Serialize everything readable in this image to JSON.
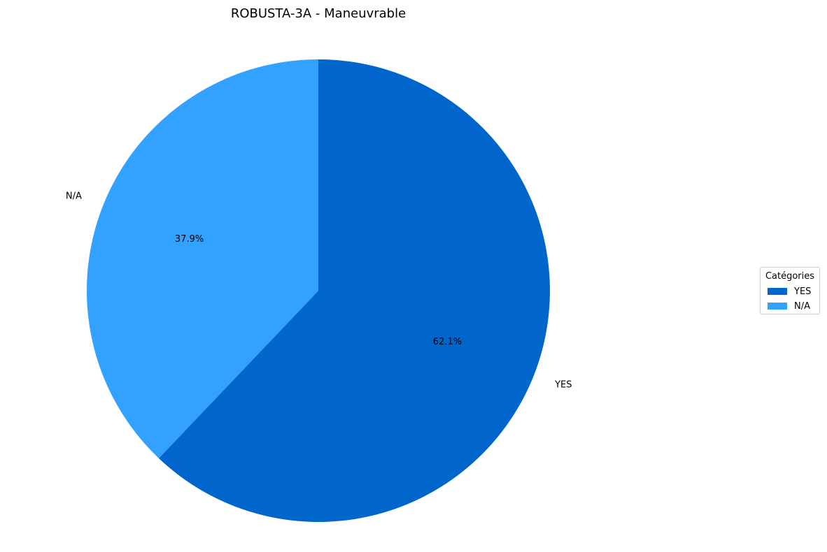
{
  "chart_data": {
    "type": "pie",
    "title": "ROBUSTA-3A - Maneuvrable",
    "categories": [
      "YES",
      "N/A"
    ],
    "values": [
      62.1,
      37.9
    ],
    "value_labels": [
      "62.1%",
      "37.9%"
    ],
    "colors": [
      "#0066cc",
      "#33a1ff"
    ],
    "start_angle_deg": 90,
    "direction": "clockwise",
    "legend": {
      "title": "Catégories",
      "placement": "center-right",
      "entries": [
        "YES",
        "N/A"
      ]
    }
  }
}
